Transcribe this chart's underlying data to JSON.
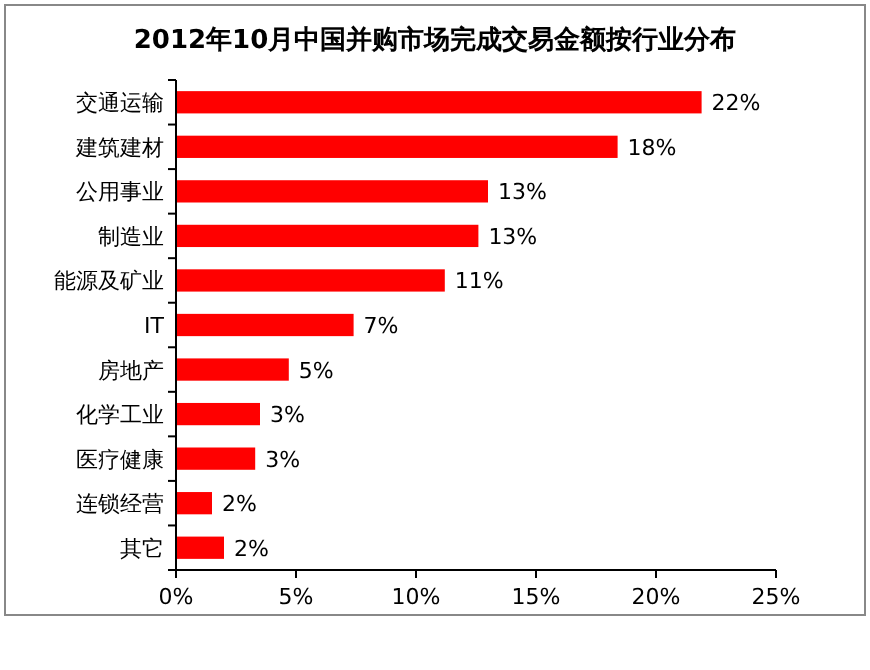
{
  "chart_data": {
    "type": "bar",
    "orientation": "horizontal",
    "title": "2012年10月中国并购市场完成交易金额按行业分布",
    "categories": [
      "交通运输",
      "建筑建材",
      "公用事业",
      "制造业",
      "能源及矿业",
      "IT",
      "房地产",
      "化学工业",
      "医疗健康",
      "连锁经营",
      "其它"
    ],
    "values": [
      21.9,
      18.4,
      13.0,
      12.6,
      11.2,
      7.4,
      4.7,
      3.5,
      3.3,
      1.5,
      2.0
    ],
    "value_labels": [
      "22%",
      "18%",
      "13%",
      "13%",
      "11%",
      "7%",
      "5%",
      "3%",
      "3%",
      "2%",
      "2%"
    ],
    "color": "#ff0000",
    "xlim": [
      0,
      25
    ],
    "xticks": [
      {
        "value": 0,
        "label": "0%"
      },
      {
        "value": 5,
        "label": "5%"
      },
      {
        "value": 10,
        "label": "10%"
      },
      {
        "value": 15,
        "label": "15%"
      },
      {
        "value": 20,
        "label": "20%"
      },
      {
        "value": 25,
        "label": "25%"
      }
    ],
    "grid": false
  }
}
